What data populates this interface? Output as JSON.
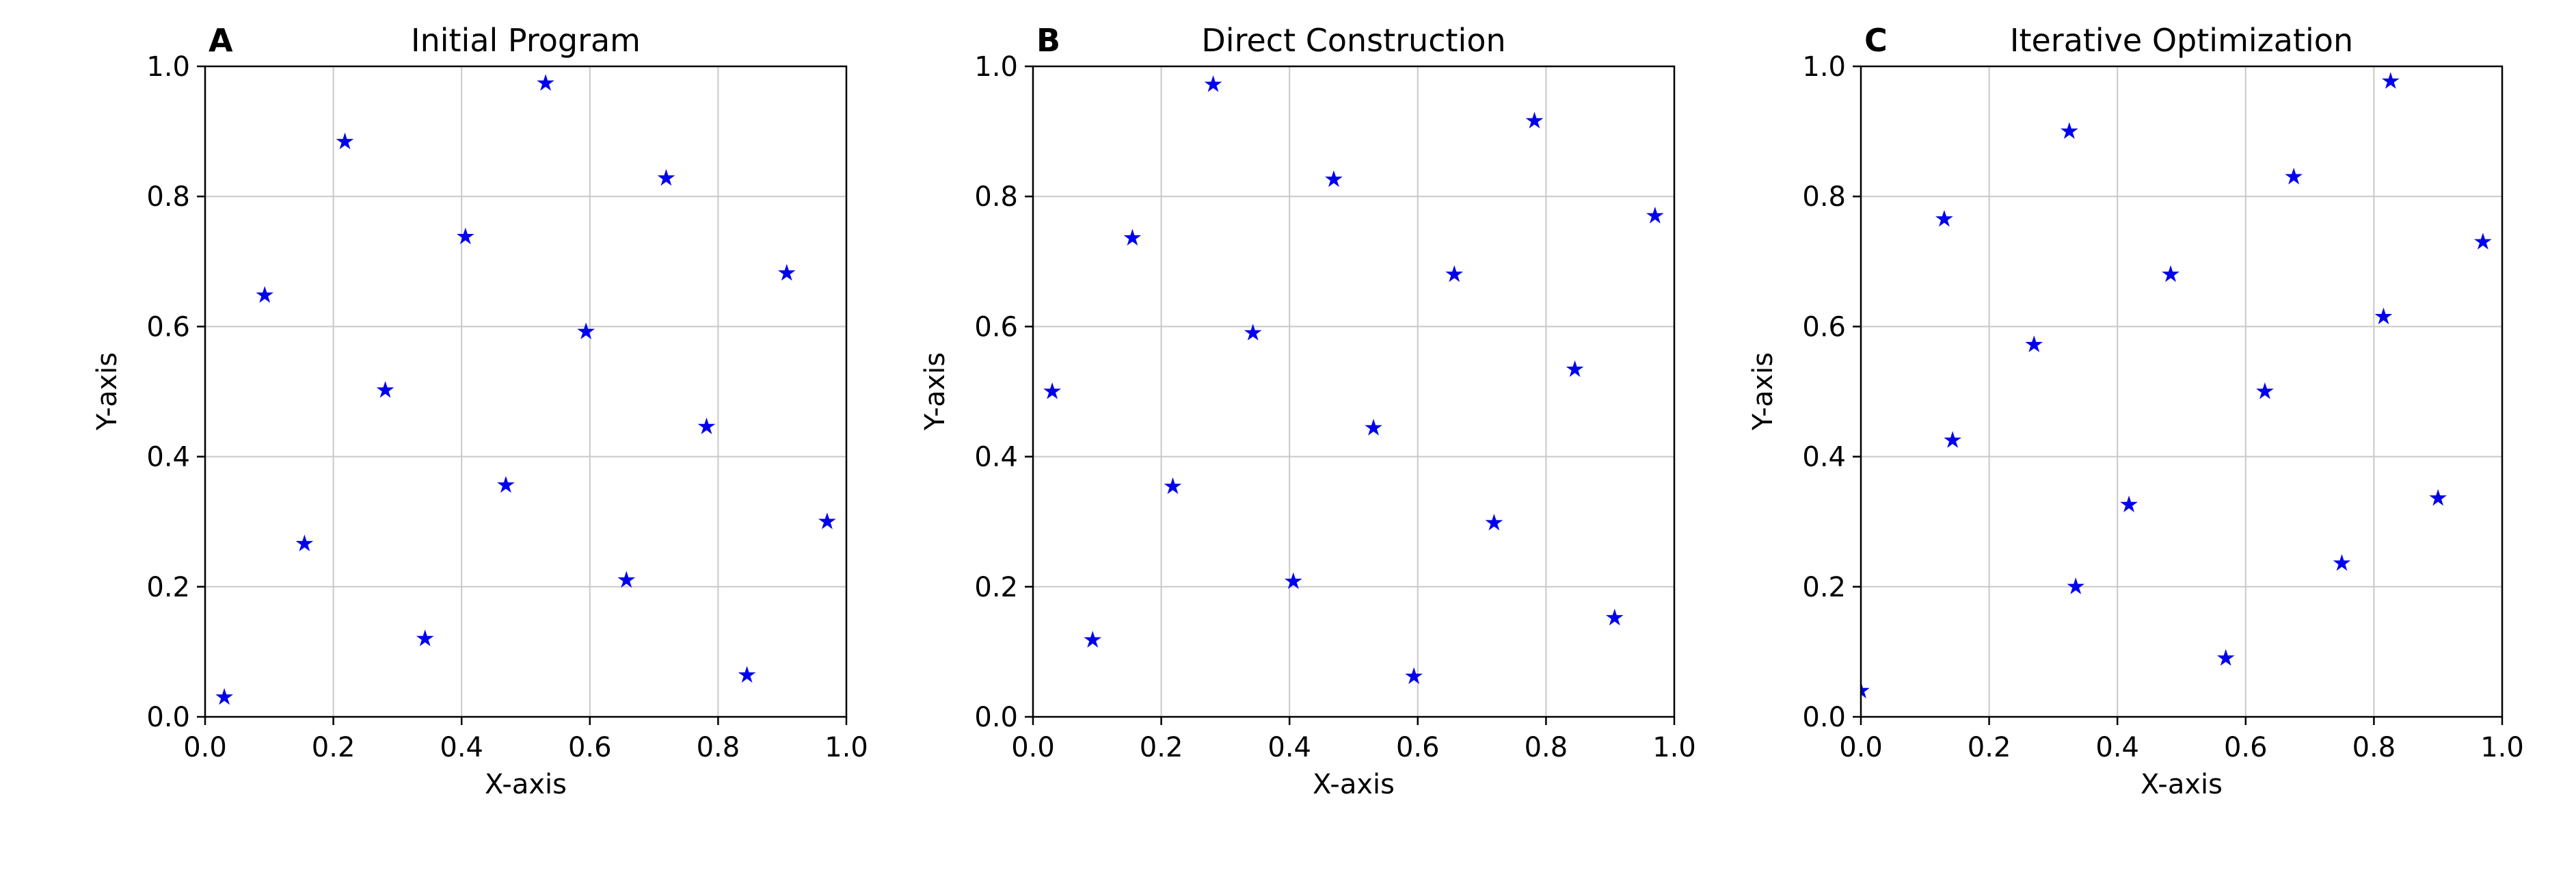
{
  "figure": {
    "background": "#FFFFFF",
    "marker_color": "#0000EE",
    "grid_color": "#C9C9C9",
    "axis_color": "#000000"
  },
  "chart_data": [
    {
      "type": "scatter",
      "panel_label": "A",
      "title": "Initial Program",
      "xlabel": "X-axis",
      "ylabel": "Y-axis",
      "xlim": [
        0.0,
        1.0
      ],
      "ylim": [
        0.0,
        1.0
      ],
      "xticks": [
        0.0,
        0.2,
        0.4,
        0.6,
        0.8,
        1.0
      ],
      "yticks": [
        0.0,
        0.2,
        0.4,
        0.6,
        0.8,
        1.0
      ],
      "grid": true,
      "marker": "star",
      "legend": "none",
      "points": [
        [
          0.03,
          0.03
        ],
        [
          0.093,
          0.648
        ],
        [
          0.155,
          0.266
        ],
        [
          0.218,
          0.884
        ],
        [
          0.281,
          0.502
        ],
        [
          0.343,
          0.12
        ],
        [
          0.406,
          0.738
        ],
        [
          0.469,
          0.356
        ],
        [
          0.531,
          0.974
        ],
        [
          0.594,
          0.592
        ],
        [
          0.657,
          0.21
        ],
        [
          0.719,
          0.828
        ],
        [
          0.782,
          0.446
        ],
        [
          0.845,
          0.064
        ],
        [
          0.907,
          0.682
        ],
        [
          0.97,
          0.3
        ]
      ]
    },
    {
      "type": "scatter",
      "panel_label": "B",
      "title": "Direct Construction",
      "xlabel": "X-axis",
      "ylabel": "Y-axis",
      "xlim": [
        0.0,
        1.0
      ],
      "ylim": [
        0.0,
        1.0
      ],
      "xticks": [
        0.0,
        0.2,
        0.4,
        0.6,
        0.8,
        1.0
      ],
      "yticks": [
        0.0,
        0.2,
        0.4,
        0.6,
        0.8,
        1.0
      ],
      "grid": true,
      "marker": "star",
      "legend": "none",
      "points": [
        [
          0.03,
          0.5
        ],
        [
          0.093,
          0.118
        ],
        [
          0.155,
          0.736
        ],
        [
          0.218,
          0.354
        ],
        [
          0.281,
          0.972
        ],
        [
          0.343,
          0.59
        ],
        [
          0.406,
          0.208
        ],
        [
          0.469,
          0.826
        ],
        [
          0.531,
          0.444
        ],
        [
          0.594,
          0.062
        ],
        [
          0.657,
          0.68
        ],
        [
          0.719,
          0.298
        ],
        [
          0.782,
          0.916
        ],
        [
          0.845,
          0.534
        ],
        [
          0.907,
          0.152
        ],
        [
          0.97,
          0.77
        ]
      ]
    },
    {
      "type": "scatter",
      "panel_label": "C",
      "title": "Iterative Optimization",
      "xlabel": "X-axis",
      "ylabel": "Y-axis",
      "xlim": [
        0.0,
        1.0
      ],
      "ylim": [
        0.0,
        1.0
      ],
      "xticks": [
        0.0,
        0.2,
        0.4,
        0.6,
        0.8,
        1.0
      ],
      "yticks": [
        0.0,
        0.2,
        0.4,
        0.6,
        0.8,
        1.0
      ],
      "grid": true,
      "marker": "star",
      "legend": "none",
      "points": [
        [
          0.0,
          0.04
        ],
        [
          0.13,
          0.765
        ],
        [
          0.143,
          0.425
        ],
        [
          0.27,
          0.572
        ],
        [
          0.325,
          0.9
        ],
        [
          0.335,
          0.2
        ],
        [
          0.418,
          0.326
        ],
        [
          0.483,
          0.68
        ],
        [
          0.569,
          0.09
        ],
        [
          0.63,
          0.5
        ],
        [
          0.675,
          0.83
        ],
        [
          0.75,
          0.236
        ],
        [
          0.815,
          0.615
        ],
        [
          0.826,
          0.977
        ],
        [
          0.9,
          0.336
        ],
        [
          0.97,
          0.73
        ]
      ]
    }
  ]
}
